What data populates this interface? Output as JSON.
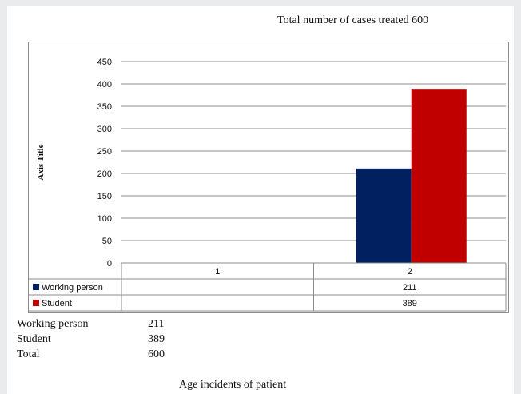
{
  "chart_title": "Total number of cases treated 600",
  "chart_data": {
    "type": "bar",
    "title": "Total number of cases treated 600",
    "categories": [
      "1",
      "2"
    ],
    "series": [
      {
        "name": "Working person",
        "values": [
          null,
          211
        ],
        "color": "#002060"
      },
      {
        "name": "Student",
        "values": [
          null,
          389
        ],
        "color": "#c00000"
      }
    ],
    "ylabel": "Axis Title",
    "xlabel": "",
    "ylim": [
      0,
      450
    ],
    "yticks": [
      0,
      50,
      100,
      150,
      200,
      250,
      300,
      350,
      400,
      450
    ],
    "grid": true,
    "legend": "data-table"
  },
  "summary": [
    {
      "label": "Working person",
      "value": "211"
    },
    {
      "label": "Student",
      "value": "389"
    },
    {
      "label": "Total",
      "value": "600"
    }
  ],
  "footer_caption": "Age incidents of patient"
}
